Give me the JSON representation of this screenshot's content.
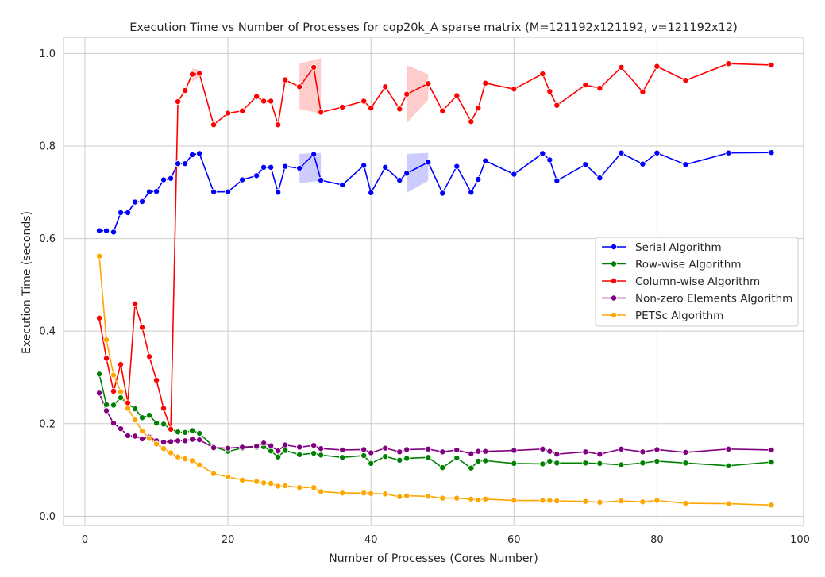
{
  "chart_data": {
    "type": "line",
    "title": "Execution Time vs Number of Processes for cop20k_A sparse matrix  (M=121192x121192, v=121192x12)",
    "xlabel": "Number of Processes (Cores Number)",
    "ylabel": "Execution Time (seconds)",
    "xlim": [
      -3,
      100.5
    ],
    "ylim": [
      -0.02,
      1.035
    ],
    "x_ticks": [
      0,
      20,
      40,
      60,
      80,
      100
    ],
    "y_ticks": [
      0.0,
      0.2,
      0.4,
      0.6,
      0.8,
      1.0
    ],
    "grid": true,
    "legend_position": "center-right",
    "series": [
      {
        "name": "Serial Algorithm",
        "color": "#0000ff",
        "x": [
          2,
          3,
          4,
          5,
          6,
          7,
          8,
          9,
          10,
          11,
          12,
          13,
          14,
          15,
          16,
          18,
          20,
          22,
          24,
          25,
          26,
          27,
          28,
          30,
          32,
          33,
          36,
          39,
          40,
          42,
          44,
          45,
          48,
          50,
          52,
          54,
          55,
          56,
          60,
          64,
          65,
          66,
          70,
          72,
          75,
          78,
          80,
          84,
          90,
          96
        ],
        "y": [
          0.617,
          0.617,
          0.614,
          0.656,
          0.656,
          0.679,
          0.68,
          0.701,
          0.702,
          0.727,
          0.73,
          0.762,
          0.762,
          0.781,
          0.784,
          0.701,
          0.701,
          0.727,
          0.736,
          0.754,
          0.754,
          0.7,
          0.756,
          0.752,
          0.782,
          0.726,
          0.716,
          0.758,
          0.699,
          0.754,
          0.726,
          0.741,
          0.765,
          0.698,
          0.756,
          0.7,
          0.728,
          0.768,
          0.739,
          0.784,
          0.77,
          0.725,
          0.76,
          0.731,
          0.785,
          0.761,
          0.785,
          0.76,
          0.785,
          0.786
        ]
      },
      {
        "name": "Row-wise Algorithm",
        "color": "#008000",
        "x": [
          2,
          3,
          4,
          5,
          6,
          7,
          8,
          9,
          10,
          11,
          12,
          13,
          14,
          15,
          16,
          18,
          20,
          22,
          24,
          25,
          26,
          27,
          28,
          30,
          32,
          33,
          36,
          39,
          40,
          42,
          44,
          45,
          48,
          50,
          52,
          54,
          55,
          56,
          60,
          64,
          65,
          66,
          70,
          72,
          75,
          78,
          80,
          84,
          90,
          96
        ],
        "y": [
          0.307,
          0.241,
          0.24,
          0.256,
          0.243,
          0.232,
          0.213,
          0.218,
          0.201,
          0.199,
          0.188,
          0.182,
          0.181,
          0.185,
          0.179,
          0.15,
          0.14,
          0.147,
          0.149,
          0.15,
          0.141,
          0.128,
          0.142,
          0.133,
          0.136,
          0.132,
          0.127,
          0.131,
          0.114,
          0.129,
          0.121,
          0.125,
          0.127,
          0.105,
          0.126,
          0.104,
          0.119,
          0.12,
          0.114,
          0.113,
          0.119,
          0.115,
          0.115,
          0.114,
          0.111,
          0.115,
          0.119,
          0.115,
          0.109,
          0.117
        ]
      },
      {
        "name": "Column-wise Algorithm",
        "color": "#ff0000",
        "x": [
          2,
          3,
          4,
          5,
          6,
          7,
          8,
          9,
          10,
          11,
          12,
          13,
          14,
          15,
          16,
          18,
          20,
          22,
          24,
          25,
          26,
          27,
          28,
          30,
          32,
          33,
          36,
          39,
          40,
          42,
          44,
          45,
          48,
          50,
          52,
          54,
          55,
          56,
          60,
          64,
          65,
          66,
          70,
          72,
          75,
          78,
          80,
          84,
          90,
          96
        ],
        "y": [
          0.428,
          0.341,
          0.27,
          0.328,
          0.245,
          0.459,
          0.408,
          0.345,
          0.294,
          0.233,
          0.188,
          0.896,
          0.92,
          0.955,
          0.957,
          0.846,
          0.871,
          0.876,
          0.907,
          0.897,
          0.897,
          0.846,
          0.943,
          0.928,
          0.97,
          0.873,
          0.884,
          0.897,
          0.882,
          0.928,
          0.88,
          0.912,
          0.935,
          0.876,
          0.909,
          0.853,
          0.882,
          0.936,
          0.923,
          0.956,
          0.918,
          0.888,
          0.932,
          0.925,
          0.97,
          0.917,
          0.972,
          0.942,
          0.978,
          0.975
        ]
      },
      {
        "name": "Non-zero Elements Algorithm",
        "color": "#800080",
        "x": [
          2,
          3,
          4,
          5,
          6,
          7,
          8,
          9,
          10,
          11,
          12,
          13,
          14,
          15,
          16,
          18,
          20,
          22,
          24,
          25,
          26,
          27,
          28,
          30,
          32,
          33,
          36,
          39,
          40,
          42,
          44,
          45,
          48,
          50,
          52,
          54,
          55,
          56,
          60,
          64,
          65,
          66,
          70,
          72,
          75,
          78,
          80,
          84,
          90,
          96
        ],
        "y": [
          0.266,
          0.228,
          0.201,
          0.189,
          0.174,
          0.173,
          0.167,
          0.171,
          0.163,
          0.16,
          0.161,
          0.163,
          0.163,
          0.166,
          0.165,
          0.148,
          0.147,
          0.149,
          0.151,
          0.158,
          0.152,
          0.141,
          0.154,
          0.149,
          0.153,
          0.146,
          0.143,
          0.144,
          0.137,
          0.147,
          0.139,
          0.144,
          0.145,
          0.139,
          0.143,
          0.135,
          0.14,
          0.14,
          0.142,
          0.145,
          0.14,
          0.134,
          0.139,
          0.134,
          0.145,
          0.139,
          0.144,
          0.138,
          0.145,
          0.143
        ]
      },
      {
        "name": "PETSc Algorithm",
        "color": "#ffa500",
        "x": [
          2,
          3,
          4,
          5,
          6,
          7,
          8,
          9,
          10,
          11,
          12,
          13,
          14,
          15,
          16,
          18,
          20,
          22,
          24,
          25,
          26,
          27,
          28,
          30,
          32,
          33,
          36,
          39,
          40,
          42,
          44,
          45,
          48,
          50,
          52,
          54,
          55,
          56,
          60,
          64,
          65,
          66,
          70,
          72,
          75,
          78,
          80,
          84,
          90,
          96
        ],
        "y": [
          0.562,
          0.381,
          0.305,
          0.269,
          0.233,
          0.208,
          0.184,
          0.168,
          0.156,
          0.146,
          0.137,
          0.128,
          0.124,
          0.12,
          0.111,
          0.092,
          0.085,
          0.078,
          0.075,
          0.072,
          0.071,
          0.065,
          0.066,
          0.062,
          0.062,
          0.053,
          0.05,
          0.05,
          0.049,
          0.048,
          0.042,
          0.044,
          0.043,
          0.039,
          0.039,
          0.037,
          0.035,
          0.037,
          0.034,
          0.034,
          0.034,
          0.033,
          0.032,
          0.03,
          0.033,
          0.031,
          0.034,
          0.028,
          0.027,
          0.024
        ]
      }
    ],
    "confidence_bands": [
      {
        "series": 0,
        "x": [
          30,
          33
        ],
        "low": [
          0.72,
          0.725
        ],
        "high": [
          0.783,
          0.785
        ]
      },
      {
        "series": 0,
        "x": [
          45,
          48
        ],
        "low": [
          0.699,
          0.725
        ],
        "high": [
          0.783,
          0.785
        ]
      },
      {
        "series": 2,
        "x": [
          30,
          33
        ],
        "low": [
          0.88,
          0.87
        ],
        "high": [
          0.978,
          0.99
        ]
      },
      {
        "series": 2,
        "x": [
          45,
          48
        ],
        "low": [
          0.85,
          0.9
        ],
        "high": [
          0.975,
          0.955
        ]
      },
      {
        "series": 2,
        "x": [
          15,
          16
        ],
        "low": [
          0.94,
          0.95
        ],
        "high": [
          0.968,
          0.964
        ]
      }
    ]
  }
}
